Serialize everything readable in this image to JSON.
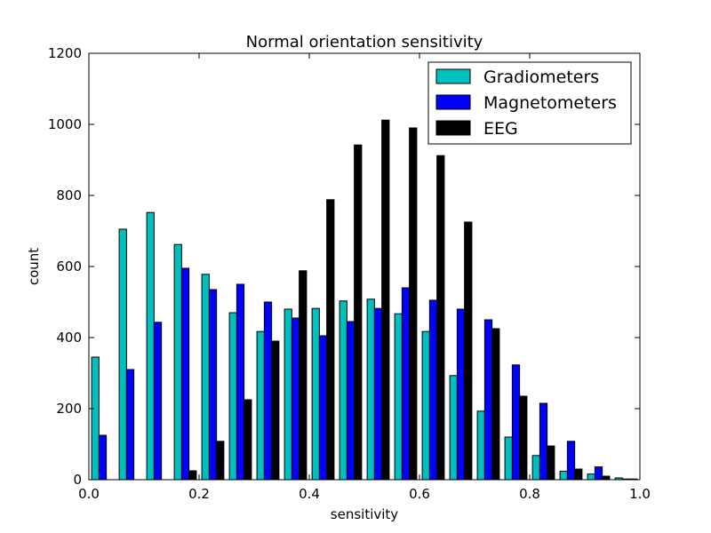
{
  "chart_data": {
    "type": "bar",
    "title": "Normal orientation sensitivity",
    "xlabel": "sensitivity",
    "ylabel": "count",
    "xlim": [
      0.0,
      1.0
    ],
    "ylim": [
      0,
      1200
    ],
    "xticks": [
      "0.0",
      "0.2",
      "0.4",
      "0.6",
      "0.8",
      "1.0"
    ],
    "yticks": [
      "0",
      "200",
      "400",
      "600",
      "800",
      "1000",
      "1200"
    ],
    "grid": false,
    "legend_position": "top-right",
    "bin_width": 0.05,
    "bins": [
      0.0,
      0.05,
      0.1,
      0.15,
      0.2,
      0.25,
      0.3,
      0.35,
      0.4,
      0.45,
      0.5,
      0.55,
      0.6,
      0.65,
      0.7,
      0.75,
      0.8,
      0.85,
      0.9,
      0.95
    ],
    "series": [
      {
        "name": "Gradiometers",
        "color": "#00bfbf",
        "values": [
          345,
          705,
          752,
          662,
          578,
          470,
          417,
          480,
          482,
          503,
          508,
          467,
          417,
          293,
          193,
          120,
          68,
          24,
          16,
          5
        ]
      },
      {
        "name": "Magnetometers",
        "color": "#0000ff",
        "values": [
          125,
          310,
          443,
          595,
          535,
          550,
          500,
          455,
          405,
          445,
          482,
          540,
          505,
          480,
          450,
          323,
          215,
          108,
          36,
          2
        ]
      },
      {
        "name": "EEG",
        "color": "#000000",
        "values": [
          0,
          0,
          0,
          25,
          108,
          225,
          390,
          588,
          788,
          942,
          1012,
          990,
          912,
          725,
          425,
          235,
          95,
          30,
          10,
          2
        ]
      }
    ]
  }
}
